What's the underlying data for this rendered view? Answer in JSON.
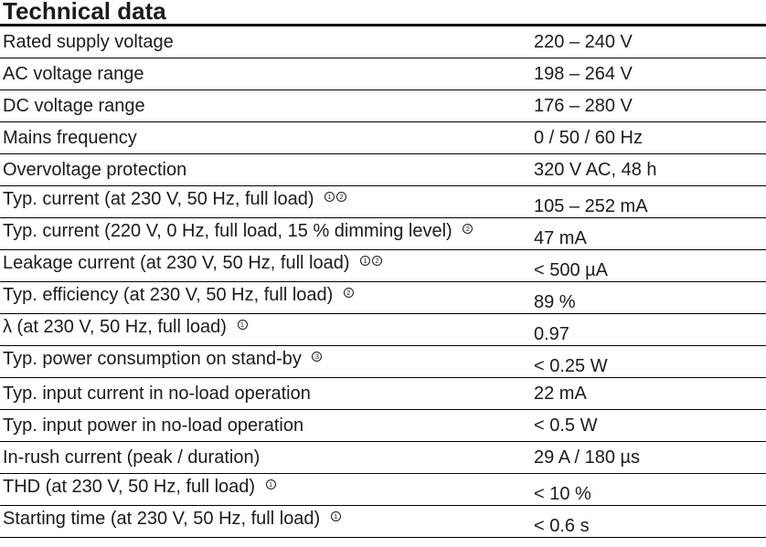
{
  "page": {
    "title": "Technical data",
    "text_color": "#1b1b1b",
    "line_color": "#000000"
  },
  "table": {
    "rows": [
      {
        "label": "Rated supply voltage",
        "sups": [],
        "value": "220 – 240 V",
        "value_offset": false
      },
      {
        "label": "AC voltage range",
        "sups": [],
        "value": "198 – 264 V",
        "value_offset": false
      },
      {
        "label": "DC voltage range",
        "sups": [],
        "value": "176 – 280 V",
        "value_offset": false
      },
      {
        "label": "Mains frequency",
        "sups": [],
        "value": "0 / 50 / 60 Hz",
        "value_offset": false
      },
      {
        "label": "Overvoltage protection",
        "sups": [],
        "value": "320 V AC, 48 h",
        "value_offset": false
      },
      {
        "label": "Typ. current (at 230 V, 50 Hz, full load)",
        "sups": [
          "1",
          "2"
        ],
        "value": "105 – 252 mA",
        "value_offset": true
      },
      {
        "label": "Typ. current (220 V, 0 Hz, full load, 15 % dimming level)",
        "sups": [
          "2"
        ],
        "value": "47 mA",
        "value_offset": true
      },
      {
        "label": "Leakage current (at 230 V, 50 Hz, full load)",
        "sups": [
          "1",
          "2"
        ],
        "value": "< 500 µA",
        "value_offset": true
      },
      {
        "label": "Typ. efficiency (at 230 V, 50 Hz, full load)",
        "sups": [
          "2"
        ],
        "value": "89 %",
        "value_offset": true
      },
      {
        "label": "λ (at 230 V, 50 Hz, full load)",
        "sups": [
          "1"
        ],
        "value": "0.97",
        "value_offset": true
      },
      {
        "label": "Typ. power consumption on stand-by",
        "sups": [
          "3"
        ],
        "value": "< 0.25 W",
        "value_offset": true
      },
      {
        "label": "Typ. input current in no-load operation",
        "sups": [],
        "value": "22 mA",
        "value_offset": false
      },
      {
        "label": "Typ. input power in no-load operation",
        "sups": [],
        "value": "< 0.5 W",
        "value_offset": false
      },
      {
        "label": "In-rush current (peak / duration)",
        "sups": [],
        "value": "29 A / 180 µs",
        "value_offset": false
      },
      {
        "label": "THD (at 230 V, 50 Hz, full load)",
        "sups": [
          "1"
        ],
        "value": "< 10 %",
        "value_offset": true
      },
      {
        "label": "Starting time (at 230 V, 50 Hz, full load)",
        "sups": [
          "1"
        ],
        "value": "< 0.6 s",
        "value_offset": true
      }
    ]
  }
}
